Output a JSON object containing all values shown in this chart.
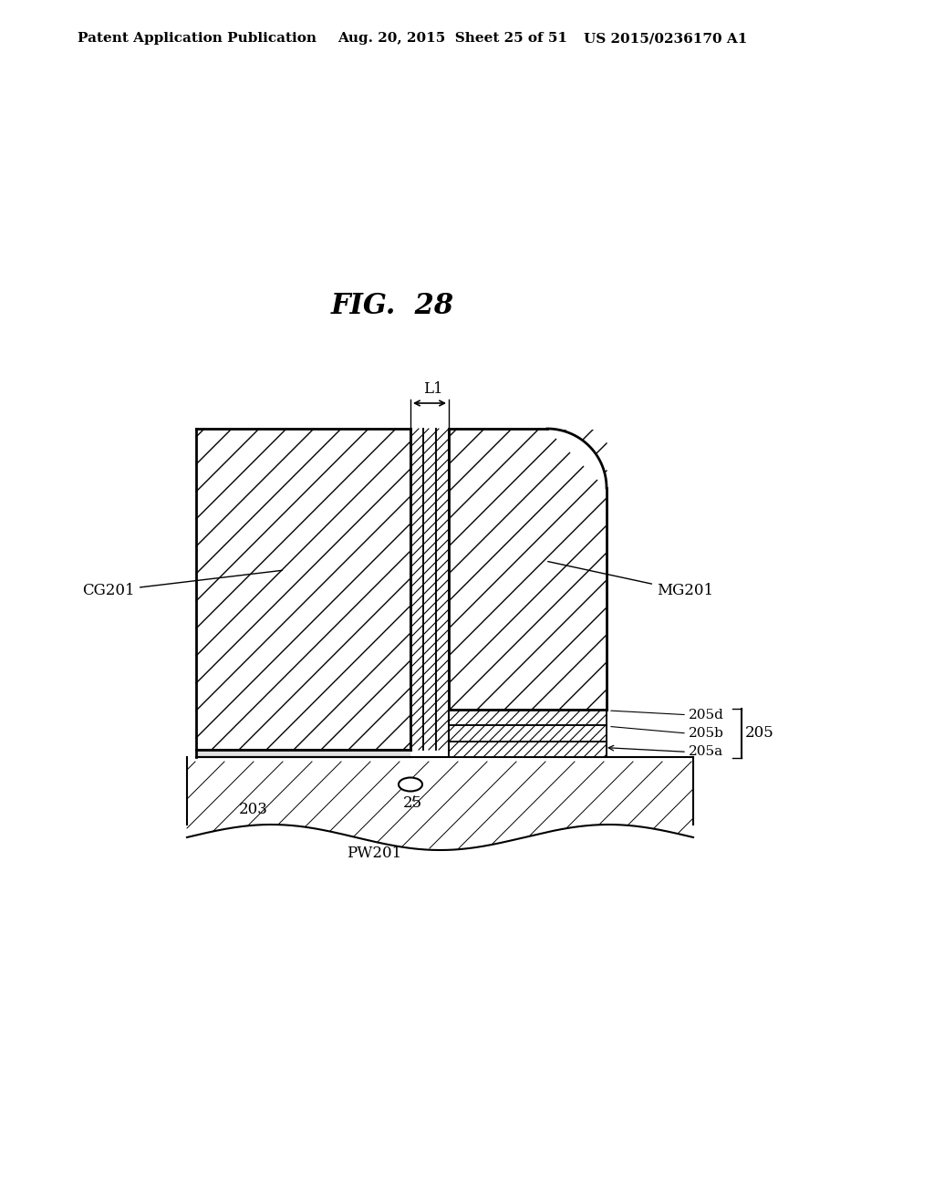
{
  "title": "FIG.  28",
  "header_left": "Patent Application Publication",
  "header_mid": "Aug. 20, 2015  Sheet 25 of 51",
  "header_right": "US 2015/0236170 A1",
  "bg_color": "#ffffff",
  "line_color": "#000000",
  "fig_title_fontsize": 22,
  "header_fontsize": 11,
  "label_fontsize": 12,
  "small_label_fontsize": 11
}
